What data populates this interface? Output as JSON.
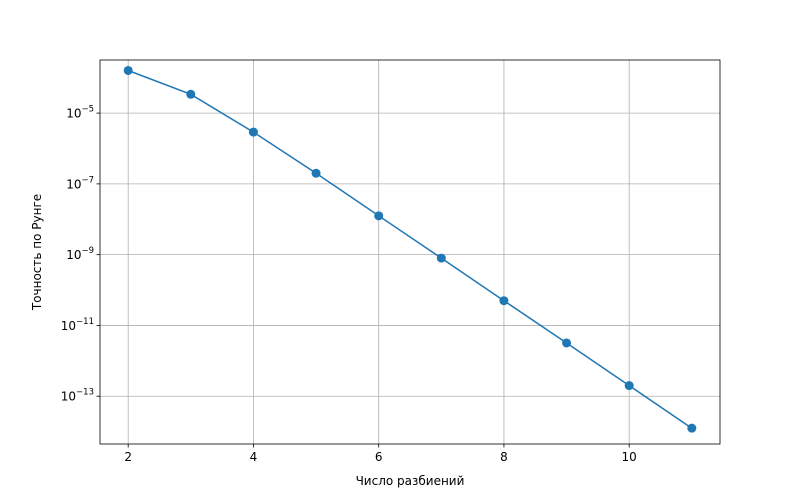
{
  "chart_data": {
    "type": "line",
    "title": "",
    "xlabel": "Число разбиений",
    "ylabel": "Точность по Рунге",
    "xscale": "linear",
    "yscale": "log",
    "xlim": [
      1.55,
      11.45
    ],
    "ylim_exponent": [
      -14.35,
      -3.5
    ],
    "grid": true,
    "legend": "none",
    "x_ticks": [
      2,
      4,
      6,
      8,
      10
    ],
    "y_ticks": [
      {
        "exponent": -5,
        "label": "10",
        "sup": "−5"
      },
      {
        "exponent": -7,
        "label": "10",
        "sup": "−7"
      },
      {
        "exponent": -9,
        "label": "10",
        "sup": "−9"
      },
      {
        "exponent": -11,
        "label": "10",
        "sup": "−11"
      },
      {
        "exponent": -13,
        "label": "10",
        "sup": "−13"
      }
    ],
    "series": [
      {
        "color": "#1f77b4",
        "marker": "circle",
        "x": [
          2,
          3,
          4,
          5,
          6,
          7,
          8,
          9,
          10,
          11
        ],
        "y": [
          0.00016,
          3.4e-05,
          2.9e-06,
          2e-07,
          1.25e-08,
          8e-10,
          5e-11,
          3.2e-12,
          2e-13,
          1.25e-14
        ]
      }
    ]
  }
}
